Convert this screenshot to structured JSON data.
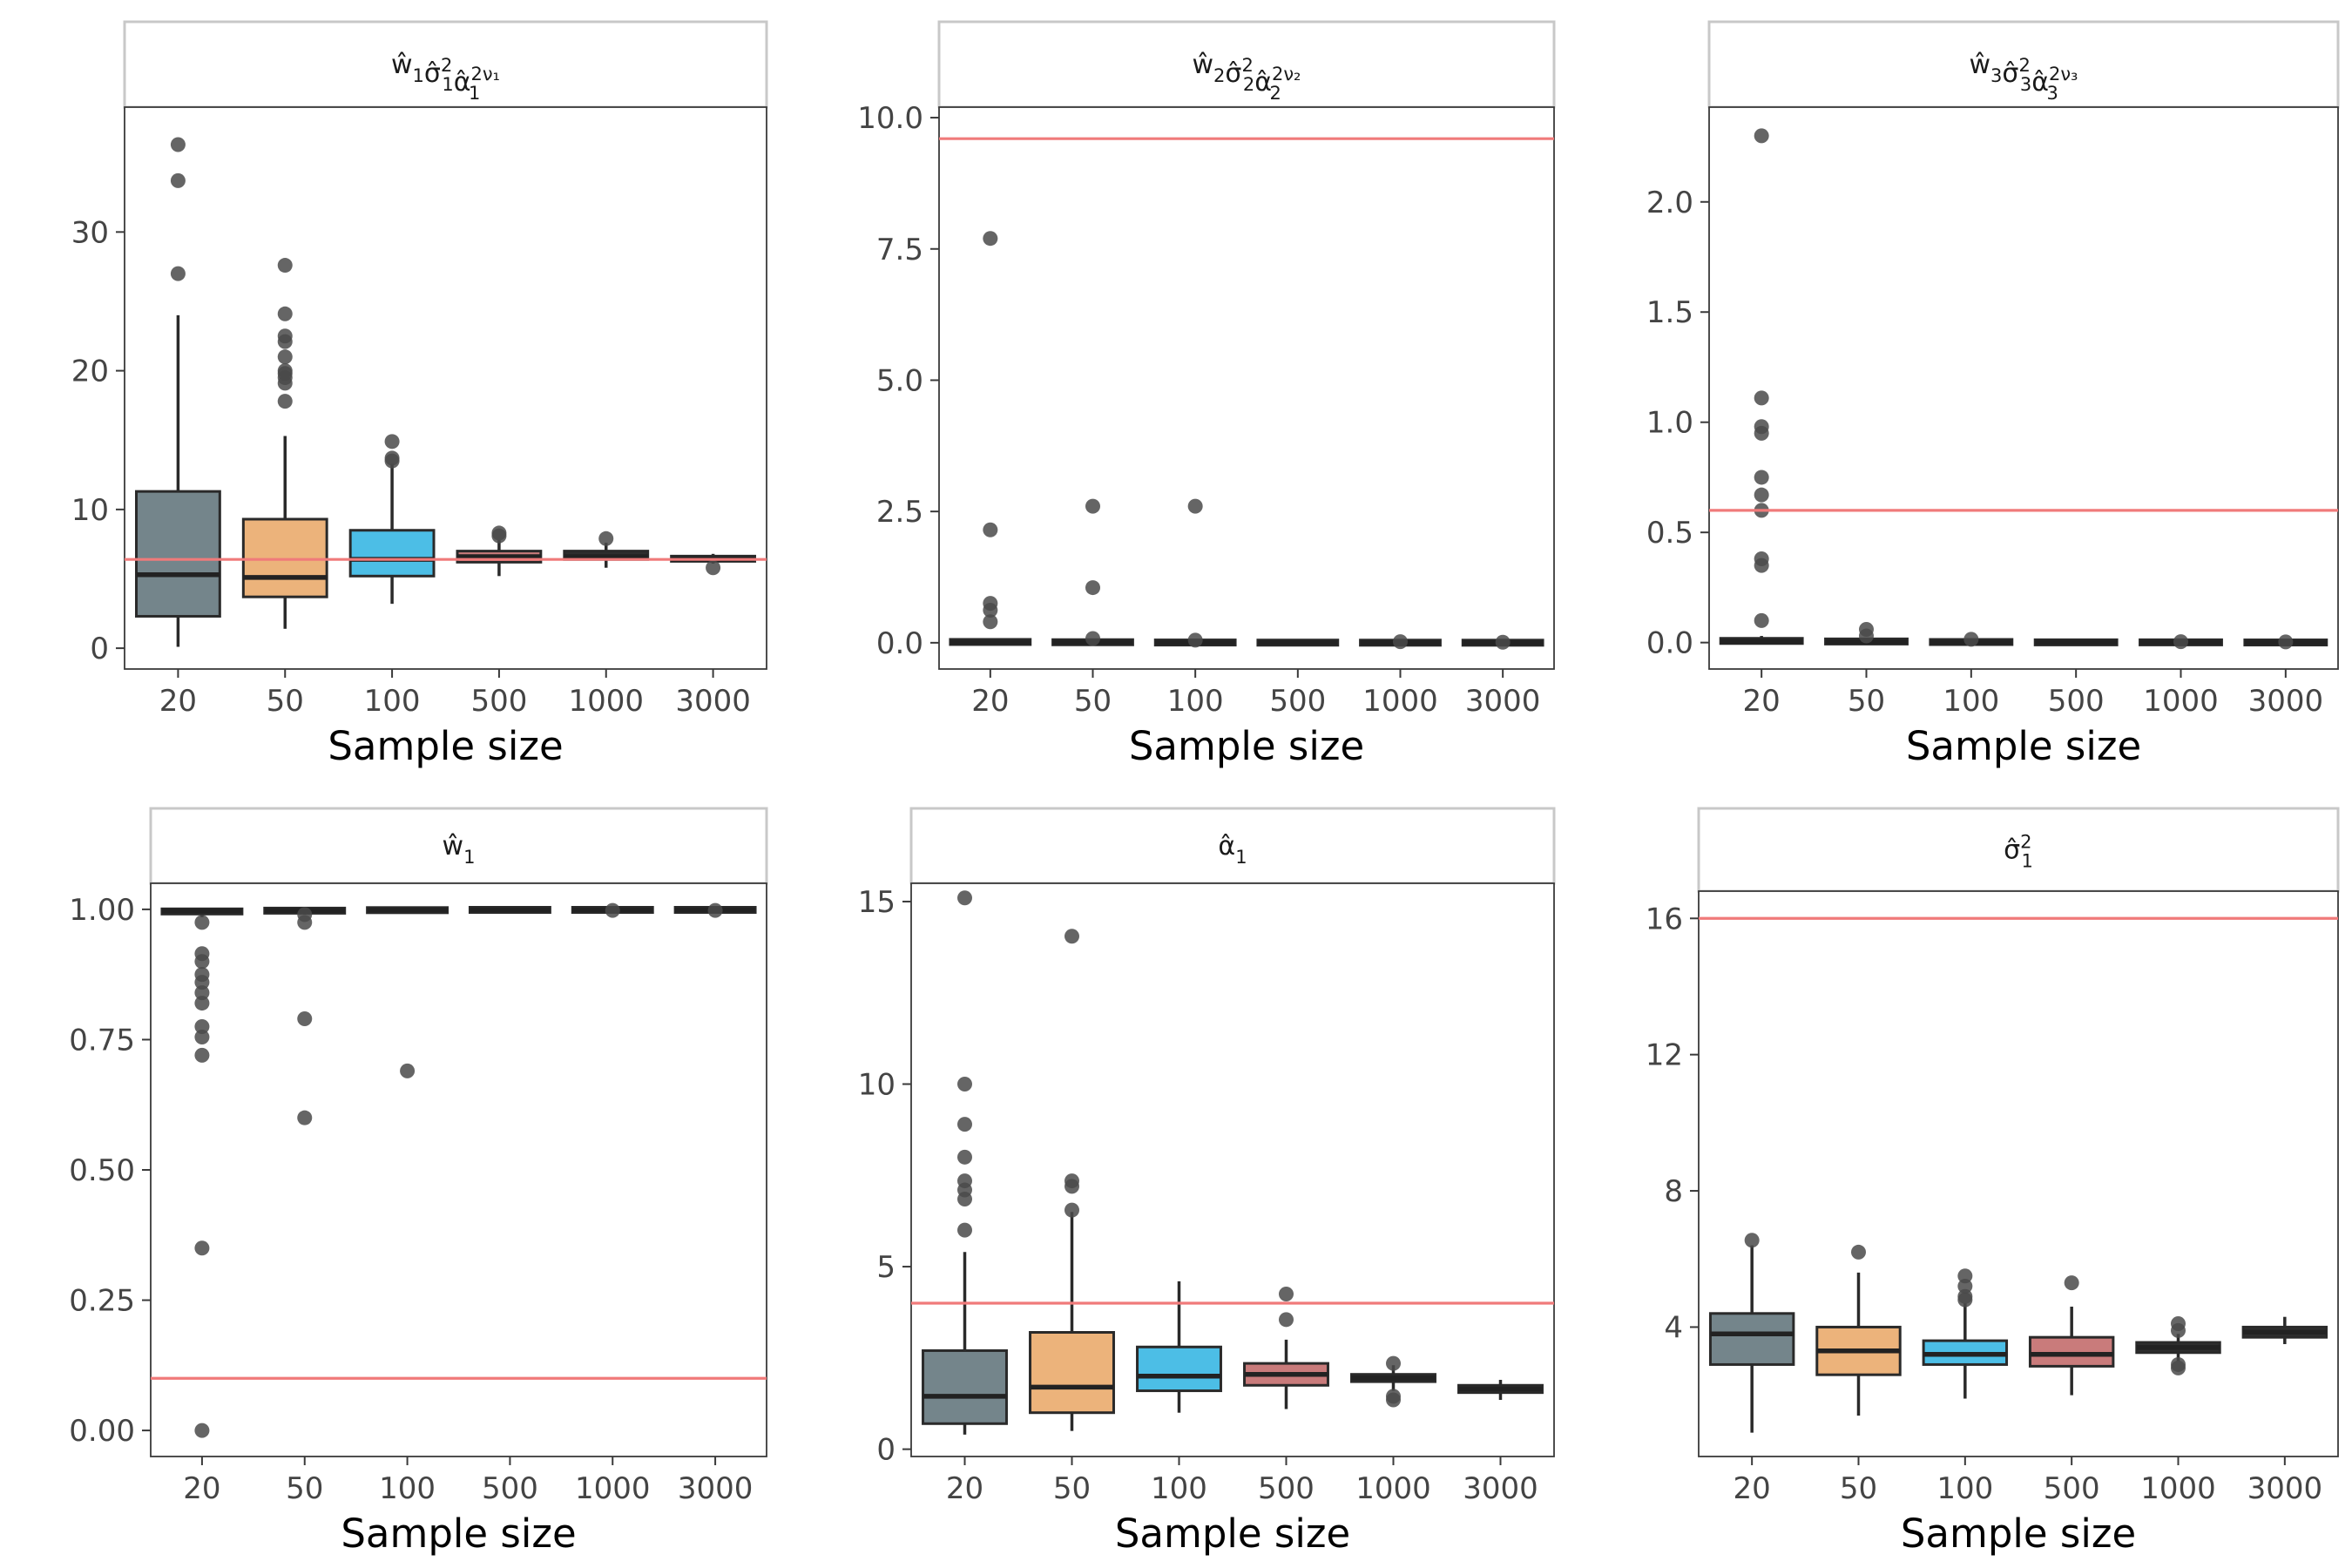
{
  "colors": {
    "reference_line": "#f07a7a",
    "box_fills": [
      "#74858b",
      "#ecb37b",
      "#4cbee6",
      "#c97b7b",
      "#2e2e2e",
      "#2e2e2e"
    ],
    "outlier": "#4a4a4a",
    "median": "#222222"
  },
  "chart_data": [
    {
      "type": "box",
      "facet_title": "ŵ₁σ̂₁²α̂₁^(2ν₁)",
      "xlabel": "Sample size",
      "categories": [
        "20",
        "50",
        "100",
        "500",
        "1000",
        "3000"
      ],
      "ylim": [
        -1.5,
        39
      ],
      "yticks": [
        0,
        10,
        20,
        30
      ],
      "reference_line": 6.4,
      "boxes": [
        {
          "q1": 2.3,
          "median": 5.3,
          "q3": 11.3,
          "lower": 0.1,
          "upper": 24.0,
          "outliers": [
            27.0,
            33.7,
            36.3
          ]
        },
        {
          "q1": 3.7,
          "median": 5.1,
          "q3": 9.3,
          "lower": 1.4,
          "upper": 15.3,
          "outliers": [
            17.8,
            19.1,
            19.5,
            19.8,
            20.0,
            21.0,
            22.1,
            22.5,
            24.1,
            27.6
          ]
        },
        {
          "q1": 5.2,
          "median": 6.4,
          "q3": 8.5,
          "lower": 3.2,
          "upper": 13.3,
          "outliers": [
            13.5,
            13.7,
            14.9
          ]
        },
        {
          "q1": 6.2,
          "median": 6.6,
          "q3": 7.0,
          "lower": 5.2,
          "upper": 7.8,
          "outliers": [
            8.1,
            8.3
          ]
        },
        {
          "q1": 6.4,
          "median": 6.6,
          "q3": 7.0,
          "lower": 5.8,
          "upper": 7.6,
          "outliers": [
            7.9
          ]
        },
        {
          "q1": 6.3,
          "median": 6.4,
          "q3": 6.6,
          "lower": 6.1,
          "upper": 6.8,
          "outliers": [
            5.8
          ]
        }
      ]
    },
    {
      "type": "box",
      "facet_title": "ŵ₂σ̂₂²α̂₂^(2ν₂)",
      "xlabel": "Sample size",
      "categories": [
        "20",
        "50",
        "100",
        "500",
        "1000",
        "3000"
      ],
      "ylim": [
        -0.5,
        10.2
      ],
      "yticks": [
        0.0,
        2.5,
        5.0,
        7.5,
        10.0
      ],
      "tick_labels": [
        "0.0",
        "2.5",
        "5.0",
        "7.5",
        "10.0"
      ],
      "reference_line": 9.6,
      "boxes": [
        {
          "q1": 0.0,
          "median": 0.01,
          "q3": 0.03,
          "lower": 0.0,
          "upper": 0.05,
          "outliers": [
            0.4,
            0.62,
            0.75,
            2.15,
            7.7
          ]
        },
        {
          "q1": 0.0,
          "median": 0.005,
          "q3": 0.02,
          "lower": 0.0,
          "upper": 0.04,
          "outliers": [
            0.08,
            1.05,
            2.6
          ]
        },
        {
          "q1": 0.0,
          "median": 0.002,
          "q3": 0.01,
          "lower": 0.0,
          "upper": 0.02,
          "outliers": [
            0.05,
            2.6
          ]
        },
        {
          "q1": 0.0,
          "median": 0.001,
          "q3": 0.005,
          "lower": 0.0,
          "upper": 0.01,
          "outliers": []
        },
        {
          "q1": 0.0,
          "median": 0.0005,
          "q3": 0.003,
          "lower": 0.0,
          "upper": 0.006,
          "outliers": [
            0.02
          ]
        },
        {
          "q1": 0.0,
          "median": 0.0002,
          "q3": 0.002,
          "lower": 0.0,
          "upper": 0.004,
          "outliers": [
            0.01
          ]
        }
      ]
    },
    {
      "type": "box",
      "facet_title": "ŵ₃σ̂₃²α̂₃^(2ν₃)",
      "xlabel": "Sample size",
      "categories": [
        "20",
        "50",
        "100",
        "500",
        "1000",
        "3000"
      ],
      "ylim": [
        -0.12,
        2.43
      ],
      "yticks": [
        0.0,
        0.5,
        1.0,
        1.5,
        2.0
      ],
      "tick_labels": [
        "0.0",
        "0.5",
        "1.0",
        "1.5",
        "2.0"
      ],
      "reference_line": 0.6,
      "boxes": [
        {
          "q1": 0.0,
          "median": 0.005,
          "q3": 0.015,
          "lower": 0.0,
          "upper": 0.03,
          "outliers": [
            0.1,
            0.35,
            0.38,
            0.6,
            0.67,
            0.75,
            0.95,
            0.98,
            1.11,
            2.3
          ]
        },
        {
          "q1": 0.0,
          "median": 0.003,
          "q3": 0.01,
          "lower": 0.0,
          "upper": 0.02,
          "outliers": [
            0.03,
            0.06
          ]
        },
        {
          "q1": 0.0,
          "median": 0.001,
          "q3": 0.005,
          "lower": 0.0,
          "upper": 0.01,
          "outliers": [
            0.015
          ]
        },
        {
          "q1": 0.0,
          "median": 0.0005,
          "q3": 0.002,
          "lower": 0.0,
          "upper": 0.004,
          "outliers": []
        },
        {
          "q1": 0.0,
          "median": 0.0003,
          "q3": 0.002,
          "lower": 0.0,
          "upper": 0.003,
          "outliers": [
            0.004
          ]
        },
        {
          "q1": 0.0,
          "median": 0.0002,
          "q3": 0.001,
          "lower": 0.0,
          "upper": 0.002,
          "outliers": [
            0.003
          ]
        }
      ]
    },
    {
      "type": "box",
      "facet_title": "ŵ₁",
      "xlabel": "Sample size",
      "categories": [
        "20",
        "50",
        "100",
        "500",
        "1000",
        "3000"
      ],
      "ylim": [
        -0.05,
        1.05
      ],
      "yticks": [
        0.0,
        0.25,
        0.5,
        0.75,
        1.0
      ],
      "tick_labels": [
        "0.00",
        "0.25",
        "0.50",
        "0.75",
        "1.00"
      ],
      "reference_line": 0.1,
      "boxes": [
        {
          "q1": 0.993,
          "median": 0.997,
          "q3": 0.999,
          "lower": 0.985,
          "upper": 1.0,
          "outliers": [
            0.0,
            0.35,
            0.72,
            0.755,
            0.775,
            0.82,
            0.84,
            0.86,
            0.875,
            0.9,
            0.915,
            0.975
          ]
        },
        {
          "q1": 0.995,
          "median": 0.998,
          "q3": 1.0,
          "lower": 0.99,
          "upper": 1.0,
          "outliers": [
            0.6,
            0.79,
            0.975,
            0.99
          ]
        },
        {
          "q1": 0.997,
          "median": 0.999,
          "q3": 1.0,
          "lower": 0.994,
          "upper": 1.0,
          "outliers": [
            0.69
          ]
        },
        {
          "q1": 0.998,
          "median": 0.999,
          "q3": 1.0,
          "lower": 0.996,
          "upper": 1.0,
          "outliers": []
        },
        {
          "q1": 0.998,
          "median": 0.999,
          "q3": 1.0,
          "lower": 0.996,
          "upper": 1.0,
          "outliers": [
            0.998
          ]
        },
        {
          "q1": 0.998,
          "median": 0.999,
          "q3": 1.0,
          "lower": 0.996,
          "upper": 1.0,
          "outliers": [
            0.998
          ]
        }
      ]
    },
    {
      "type": "box",
      "facet_title": "α̂₁",
      "xlabel": "Sample size",
      "categories": [
        "20",
        "50",
        "100",
        "500",
        "1000",
        "3000"
      ],
      "ylim": [
        -0.2,
        15.5
      ],
      "yticks": [
        0,
        5,
        10,
        15
      ],
      "reference_line": 4.0,
      "boxes": [
        {
          "q1": 0.7,
          "median": 1.45,
          "q3": 2.7,
          "lower": 0.4,
          "upper": 5.4,
          "outliers": [
            6.0,
            6.85,
            7.1,
            7.35,
            8.0,
            8.9,
            10.0,
            15.1
          ]
        },
        {
          "q1": 1.0,
          "median": 1.7,
          "q3": 3.2,
          "lower": 0.5,
          "upper": 6.5,
          "outliers": [
            6.55,
            7.2,
            7.35,
            14.05
          ]
        },
        {
          "q1": 1.6,
          "median": 2.0,
          "q3": 2.8,
          "lower": 1.0,
          "upper": 4.6,
          "outliers": []
        },
        {
          "q1": 1.75,
          "median": 2.05,
          "q3": 2.35,
          "lower": 1.1,
          "upper": 3.0,
          "outliers": [
            3.55,
            4.25
          ]
        },
        {
          "q1": 1.85,
          "median": 1.95,
          "q3": 2.05,
          "lower": 1.6,
          "upper": 2.3,
          "outliers": [
            1.35,
            1.45,
            2.35
          ]
        },
        {
          "q1": 1.55,
          "median": 1.65,
          "q3": 1.75,
          "lower": 1.35,
          "upper": 1.9,
          "outliers": []
        }
      ]
    },
    {
      "type": "box",
      "facet_title": "σ̂₁²",
      "xlabel": "Sample size",
      "categories": [
        "20",
        "50",
        "100",
        "500",
        "1000",
        "3000"
      ],
      "ylim": [
        0.2,
        16.8
      ],
      "yticks": [
        4,
        8,
        12,
        16
      ],
      "reference_line": 16.0,
      "boxes": [
        {
          "q1": 2.9,
          "median": 3.8,
          "q3": 4.4,
          "lower": 0.9,
          "upper": 6.4,
          "outliers": [
            6.55
          ]
        },
        {
          "q1": 2.6,
          "median": 3.3,
          "q3": 4.0,
          "lower": 1.4,
          "upper": 5.6,
          "outliers": [
            6.2
          ]
        },
        {
          "q1": 2.9,
          "median": 3.2,
          "q3": 3.6,
          "lower": 1.9,
          "upper": 4.7,
          "outliers": [
            4.8,
            4.9,
            5.2,
            5.5
          ]
        },
        {
          "q1": 2.85,
          "median": 3.2,
          "q3": 3.7,
          "lower": 2.0,
          "upper": 4.6,
          "outliers": [
            5.3
          ]
        },
        {
          "q1": 3.25,
          "median": 3.4,
          "q3": 3.55,
          "lower": 3.0,
          "upper": 3.8,
          "outliers": [
            2.8,
            2.9,
            3.9,
            4.1
          ]
        },
        {
          "q1": 3.7,
          "median": 3.85,
          "q3": 4.0,
          "lower": 3.5,
          "upper": 4.3,
          "outliers": []
        }
      ]
    }
  ]
}
